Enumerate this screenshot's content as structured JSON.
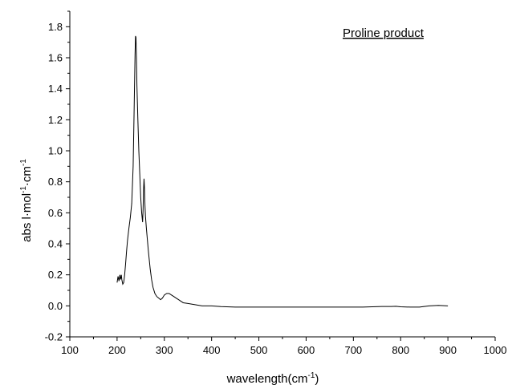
{
  "chart_data": {
    "type": "line",
    "title": "",
    "annotation": "Proline product",
    "xlabel_main": "wavelength(cm",
    "xlabel_sup": "-1",
    "xlabel_end": ")",
    "ylabel_parts": [
      {
        "t": "abs l·mol",
        "sup": false
      },
      {
        "t": "-1",
        "sup": true
      },
      {
        "t": "·cm",
        "sup": false
      },
      {
        "t": "-1",
        "sup": true
      }
    ],
    "xlim": [
      100,
      1000
    ],
    "ylim": [
      -0.2,
      1.9
    ],
    "x_ticks": [
      100,
      200,
      300,
      400,
      500,
      600,
      700,
      800,
      900,
      1000
    ],
    "x_tick_labels": [
      "100",
      "200",
      "300",
      "400",
      "500",
      "600",
      "700",
      "800",
      "900",
      "1000"
    ],
    "y_ticks": [
      -0.2,
      0.0,
      0.2,
      0.4,
      0.6,
      0.8,
      1.0,
      1.2,
      1.4,
      1.6,
      1.8
    ],
    "y_tick_labels": [
      "-0.2",
      "0.0",
      "0.2",
      "0.4",
      "0.6",
      "0.8",
      "1.0",
      "1.2",
      "1.4",
      "1.6",
      "1.8"
    ],
    "grid": false,
    "line_color": "#000000",
    "series": [
      {
        "x": [
          200,
          202,
          204,
          206,
          207,
          208,
          209,
          210,
          212,
          214,
          216,
          218,
          220,
          222,
          225,
          228,
          231,
          234,
          236,
          238,
          239,
          240,
          241,
          242,
          244,
          246,
          248,
          250,
          252,
          254,
          255,
          256,
          257,
          258,
          259,
          260,
          262,
          264,
          266,
          268,
          270,
          273,
          276,
          280,
          284,
          288,
          292,
          296,
          300,
          305,
          310,
          315,
          320,
          325,
          330,
          335,
          340,
          350,
          360,
          370,
          380,
          400,
          420,
          450,
          500,
          550,
          600,
          650,
          700,
          720,
          740,
          760,
          780,
          790,
          800,
          820,
          840,
          860,
          880,
          900
        ],
        "y": [
          0.15,
          0.19,
          0.16,
          0.2,
          0.17,
          0.18,
          0.2,
          0.17,
          0.14,
          0.15,
          0.2,
          0.27,
          0.35,
          0.42,
          0.5,
          0.57,
          0.66,
          0.9,
          1.25,
          1.62,
          1.74,
          1.73,
          1.6,
          1.42,
          1.2,
          1.0,
          0.85,
          0.7,
          0.6,
          0.54,
          0.62,
          0.75,
          0.82,
          0.76,
          0.65,
          0.58,
          0.5,
          0.43,
          0.36,
          0.3,
          0.24,
          0.17,
          0.12,
          0.08,
          0.06,
          0.05,
          0.04,
          0.05,
          0.07,
          0.08,
          0.08,
          0.07,
          0.06,
          0.05,
          0.04,
          0.03,
          0.02,
          0.015,
          0.01,
          0.005,
          0.0,
          0.0,
          -0.005,
          -0.008,
          -0.008,
          -0.008,
          -0.008,
          -0.008,
          -0.008,
          -0.008,
          -0.006,
          -0.004,
          -0.004,
          -0.003,
          -0.006,
          -0.008,
          -0.008,
          0.0,
          0.003,
          0.0
        ]
      }
    ]
  }
}
